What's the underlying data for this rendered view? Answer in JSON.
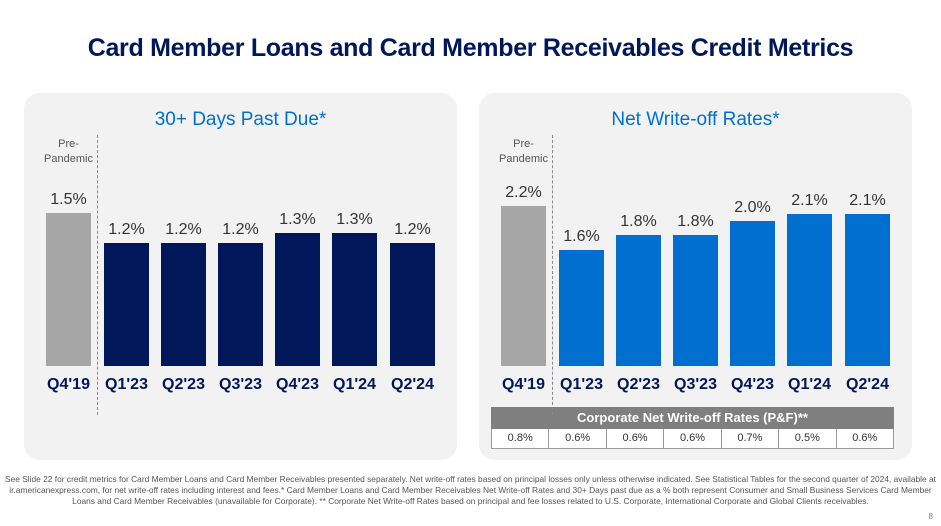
{
  "title": "Card Member Loans and Card Member Receivables Credit Metrics",
  "colors": {
    "pre": "#a6a6a6",
    "dark_navy": "#00175a",
    "blue": "#006fcf",
    "title": "#00175a"
  },
  "chart_data": [
    {
      "type": "bar",
      "title": "30+ Days Past Due*",
      "pre_label": "Pre-\nPandemic",
      "categories": [
        "Q4'19",
        "Q1'23",
        "Q2'23",
        "Q3'23",
        "Q4'23",
        "Q1'24",
        "Q2'24"
      ],
      "values": [
        1.5,
        1.2,
        1.2,
        1.2,
        1.3,
        1.3,
        1.2
      ],
      "labels": [
        "1.5%",
        "1.2%",
        "1.2%",
        "1.2%",
        "1.3%",
        "1.3%",
        "1.2%"
      ],
      "ylim": [
        0,
        2.2
      ]
    },
    {
      "type": "bar",
      "title": "Net Write-off Rates*",
      "pre_label": "Pre-\nPandemic",
      "categories": [
        "Q4'19",
        "Q1'23",
        "Q2'23",
        "Q3'23",
        "Q4'23",
        "Q1'24",
        "Q2'24"
      ],
      "values": [
        2.2,
        1.6,
        1.8,
        1.8,
        2.0,
        2.1,
        2.1
      ],
      "labels": [
        "2.2%",
        "1.6%",
        "1.8%",
        "1.8%",
        "2.0%",
        "2.1%",
        "2.1%"
      ],
      "ylim": [
        0,
        3.1
      ]
    }
  ],
  "corporate_table": {
    "header": "Corporate Net Write-off Rates (P&F)**",
    "values": [
      "0.8%",
      "0.6%",
      "0.6%",
      "0.6%",
      "0.7%",
      "0.5%",
      "0.6%"
    ]
  },
  "footnote": "See Slide 22 for credit metrics for Card Member Loans and Card Member Receivables presented separately. Net write-off rates based on principal losses only unless otherwise indicated. See Statistical Tables for the second quarter of 2024, available at ir.americanexpress.com, for net write-off rates including interest and fees.* Card Member Loans and Card Member Receivables Net Write-off Rates and 30+ Days past due as a % both represent Consumer and Small Business Services Card Member Loans and Card Member Receivables (unavailable for Corporate). ** Corporate Net Write-off Rates based on principal and fee losses related to U.S. Corporate, International Corporate and Global Clients receivables.",
  "page_number": "8"
}
